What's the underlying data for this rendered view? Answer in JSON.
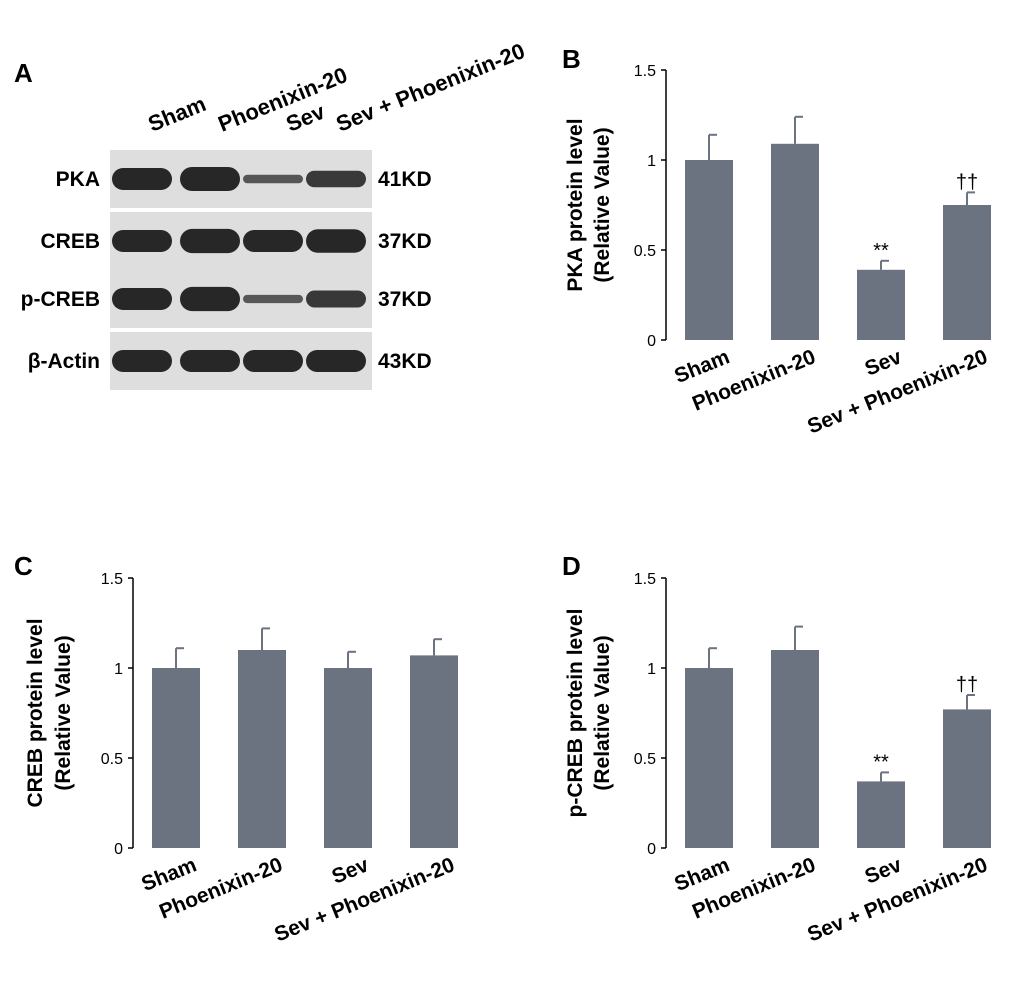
{
  "blot": {
    "panel": "A",
    "lanes": [
      "Sham",
      "Phoenixin-20",
      "Sev",
      "Sev + Phoenixin-20"
    ],
    "rows": [
      {
        "label": "PKA",
        "size": "41KD",
        "band_intensity": [
          1.0,
          1.09,
          0.39,
          0.75
        ]
      },
      {
        "label": "CREB",
        "size": "37KD",
        "band_intensity": [
          1.0,
          1.1,
          1.0,
          1.07
        ]
      },
      {
        "label": "p-CREB",
        "size": "37KD",
        "band_intensity": [
          1.0,
          1.1,
          0.37,
          0.77
        ]
      },
      {
        "label": "β-Actin",
        "size": "43KD",
        "band_intensity": [
          1.0,
          1.0,
          1.0,
          1.0
        ]
      }
    ],
    "colors": {
      "band": "#1c1c1c",
      "membrane": "#dedede"
    }
  },
  "chart_data": [
    {
      "panel": "B",
      "type": "bar",
      "categories": [
        "Sham",
        "Phoenixin-20",
        "Sev",
        "Sev + Phoenixin-20"
      ],
      "values": [
        1.0,
        1.09,
        0.39,
        0.75
      ],
      "errors": [
        0.14,
        0.15,
        0.05,
        0.07
      ],
      "annotations": [
        "",
        "",
        "**",
        "††"
      ],
      "ylabel_line1": "PKA protein level",
      "ylabel_line2": "(Relative Value)",
      "ylim": [
        0,
        1.5
      ],
      "yticks": [
        "0",
        "0.5",
        "1",
        "1.5"
      ],
      "bar_color": "#6b7280"
    },
    {
      "panel": "C",
      "type": "bar",
      "categories": [
        "Sham",
        "Phoenixin-20",
        "Sev",
        "Sev + Phoenixin-20"
      ],
      "values": [
        1.0,
        1.1,
        1.0,
        1.07
      ],
      "errors": [
        0.11,
        0.12,
        0.09,
        0.09
      ],
      "annotations": [
        "",
        "",
        "",
        ""
      ],
      "ylabel_line1": "CREB protein level",
      "ylabel_line2": "(Relative Value)",
      "ylim": [
        0,
        1.5
      ],
      "yticks": [
        "0",
        "0.5",
        "1",
        "1.5"
      ],
      "bar_color": "#6b7280"
    },
    {
      "panel": "D",
      "type": "bar",
      "categories": [
        "Sham",
        "Phoenixin-20",
        "Sev",
        "Sev + Phoenixin-20"
      ],
      "values": [
        1.0,
        1.1,
        0.37,
        0.77
      ],
      "errors": [
        0.11,
        0.13,
        0.05,
        0.08
      ],
      "annotations": [
        "",
        "",
        "**",
        "††"
      ],
      "ylabel_line1": "p-CREB protein level",
      "ylabel_line2": "(Relative Value)",
      "ylim": [
        0,
        1.5
      ],
      "yticks": [
        "0",
        "0.5",
        "1",
        "1.5"
      ],
      "bar_color": "#6b7280"
    }
  ]
}
